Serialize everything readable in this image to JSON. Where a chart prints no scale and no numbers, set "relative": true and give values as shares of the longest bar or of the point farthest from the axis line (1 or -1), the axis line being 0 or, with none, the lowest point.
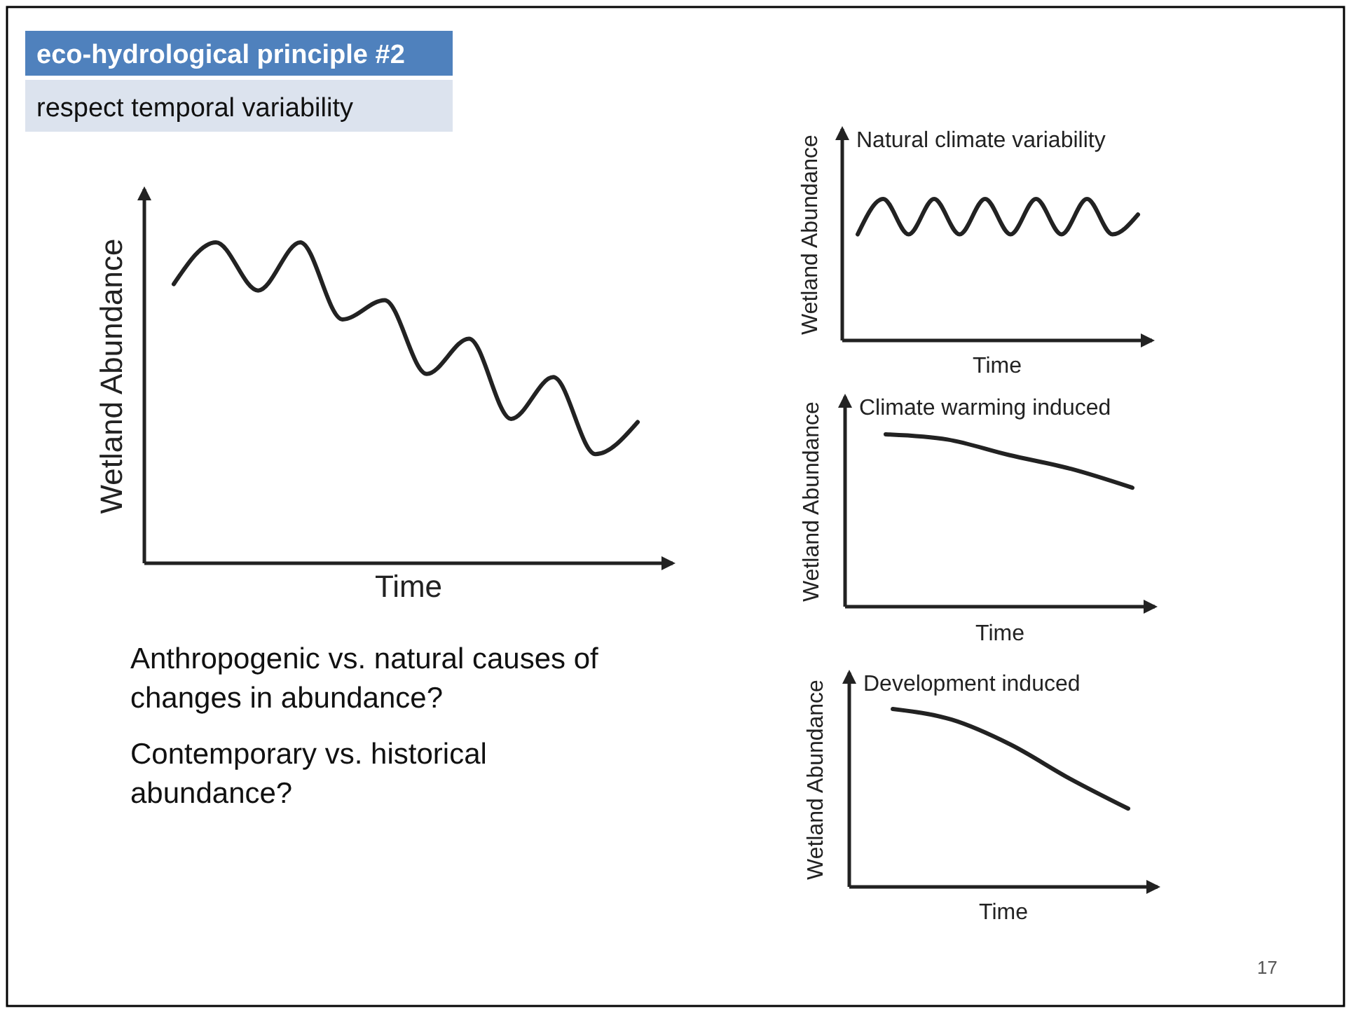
{
  "chart_data": [
    {
      "type": "other",
      "title": "eco-hydrological principle #2",
      "subtitle": "respect temporal variability",
      "annotations": [
        "Anthropogenic vs. natural causes of changes in abundance?",
        "Contemporary vs. historical abundance?",
        "17"
      ]
    },
    {
      "type": "line",
      "xlabel": "Time",
      "ylabel": "Wetland Abundance",
      "relative": true,
      "color": "#222222",
      "categories": [
        null,
        null,
        null,
        null,
        null,
        null,
        null,
        null,
        null,
        null,
        null,
        null
      ],
      "values": [
        0.87,
        1,
        0.85,
        1,
        0.76,
        0.82,
        0.59,
        0.7,
        0.45,
        0.58,
        0.34,
        0.44
      ]
    },
    {
      "type": "line",
      "title": "Natural climate variability",
      "xlabel": "Time",
      "ylabel": "Wetland Abundance",
      "relative": true,
      "color": "#222222",
      "categories": [
        null,
        null,
        null,
        null,
        null,
        null,
        null,
        null,
        null,
        null,
        null,
        null
      ],
      "values": [
        0.75,
        1,
        0.75,
        1,
        0.75,
        1,
        0.75,
        1,
        0.75,
        1,
        0.75,
        0.89
      ]
    },
    {
      "type": "line",
      "title": "Climate warming induced",
      "xlabel": "Time",
      "ylabel": "Wetland Abundance",
      "relative": true,
      "color": "#222222",
      "categories": [
        null,
        null,
        null,
        null,
        null
      ],
      "values": [
        1,
        0.97,
        0.88,
        0.8,
        0.69
      ]
    },
    {
      "type": "line",
      "title": "Development induced",
      "xlabel": "Time",
      "ylabel": "Wetland Abundance",
      "relative": true,
      "color": "#222222",
      "categories": [
        null,
        null,
        null,
        null,
        null
      ],
      "values": [
        1,
        0.94,
        0.8,
        0.61,
        0.44
      ]
    }
  ]
}
